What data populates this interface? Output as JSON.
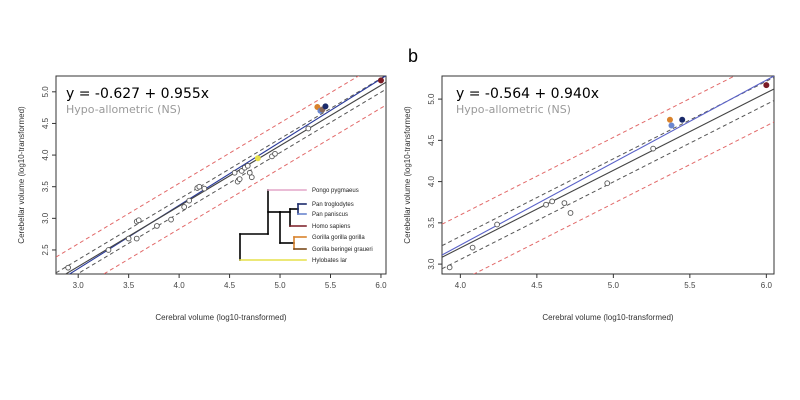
{
  "chart_data": [
    {
      "type": "scatter",
      "panel_label": "",
      "equation": "y = -0.627 + 0.955x",
      "annotation": "Hypo-allometric (NS)",
      "xlabel": "Cerebral volume (log10-transformed)",
      "ylabel": "Cerebellar volume (log10-transformed)",
      "xlim": [
        2.78,
        6.05
      ],
      "ylim": [
        2.12,
        5.25
      ],
      "xticks": [
        "3.0",
        "3.5",
        "4.0",
        "4.5",
        "5.0",
        "5.5",
        "6.0"
      ],
      "yticks": [
        "2.5",
        "3.0",
        "3.5",
        "4.0",
        "4.5",
        "5.0"
      ],
      "grid": false,
      "lines": {
        "fit": {
          "slope": 0.955,
          "intercept": -0.627,
          "color": "#444444"
        },
        "isometric": {
          "slope": 1.0,
          "intercept": -0.795,
          "color": "#2a3a9a"
        },
        "ci_inner": {
          "offset": 0.11,
          "color": "#555555",
          "dash": "dashed"
        },
        "pi_outer": {
          "offset": 0.36,
          "color": "#e26a6a",
          "dash": "dashed"
        }
      },
      "points": [
        {
          "x": 2.9,
          "y": 2.22
        },
        {
          "x": 3.3,
          "y": 2.5
        },
        {
          "x": 3.5,
          "y": 2.68
        },
        {
          "x": 3.58,
          "y": 2.68
        },
        {
          "x": 3.58,
          "y": 2.95
        },
        {
          "x": 3.6,
          "y": 2.97
        },
        {
          "x": 3.78,
          "y": 2.88
        },
        {
          "x": 3.92,
          "y": 2.98
        },
        {
          "x": 4.05,
          "y": 3.18
        },
        {
          "x": 4.1,
          "y": 3.28
        },
        {
          "x": 4.18,
          "y": 3.48
        },
        {
          "x": 4.2,
          "y": 3.5
        },
        {
          "x": 4.25,
          "y": 3.47
        },
        {
          "x": 4.55,
          "y": 3.72
        },
        {
          "x": 4.58,
          "y": 3.58
        },
        {
          "x": 4.6,
          "y": 3.62
        },
        {
          "x": 4.62,
          "y": 3.75
        },
        {
          "x": 4.65,
          "y": 3.8
        },
        {
          "x": 4.68,
          "y": 3.83
        },
        {
          "x": 4.7,
          "y": 3.72
        },
        {
          "x": 4.72,
          "y": 3.65
        },
        {
          "x": 4.92,
          "y": 3.98
        },
        {
          "x": 4.95,
          "y": 4.02
        },
        {
          "x": 5.28,
          "y": 4.42
        }
      ],
      "highlighted_points": [
        {
          "x": 4.78,
          "y": 3.95,
          "color": "#e6e04a"
        },
        {
          "x": 5.37,
          "y": 4.76,
          "color": "#d9822b"
        },
        {
          "x": 5.4,
          "y": 4.7,
          "color": "#6a86cf"
        },
        {
          "x": 5.42,
          "y": 4.72,
          "color": "#8a6a5a"
        },
        {
          "x": 5.45,
          "y": 4.77,
          "color": "#1a2a6a"
        },
        {
          "x": 6.0,
          "y": 5.18,
          "color": "#7a1a24"
        }
      ],
      "legend_tree": {
        "taxa": [
          {
            "name": "Pongo pygmaeus",
            "color": "#e4a6c8"
          },
          {
            "name": "Pan troglodytes",
            "color": "#1a2a6a"
          },
          {
            "name": "Pan paniscus",
            "color": "#6a86cf"
          },
          {
            "name": "Homo sapiens",
            "color": "#7a1a24"
          },
          {
            "name": "Gorilla gorilla gorilla",
            "color": "#d9822b"
          },
          {
            "name": "Gorilla beringei graueri",
            "color": "#7a4a1a"
          },
          {
            "name": "Hylobates lar",
            "color": "#e6e04a"
          }
        ]
      }
    },
    {
      "type": "scatter",
      "panel_label": "b",
      "equation": "y = -0.564 + 0.940x",
      "annotation": "Hypo-allometric (NS)",
      "xlabel": "Cerebral volume (log10-transformed)",
      "ylabel": "Cerebellar volume (log10-transformed)",
      "xlim": [
        3.88,
        6.05
      ],
      "ylim": [
        2.88,
        5.28
      ],
      "xticks": [
        "4.0",
        "4.5",
        "5.0",
        "5.5",
        "6.0"
      ],
      "yticks": [
        "3.0",
        "3.5",
        "4.0",
        "4.5",
        "5.0"
      ],
      "grid": false,
      "lines": {
        "fit": {
          "slope": 0.94,
          "intercept": -0.564,
          "color": "#444444"
        },
        "isometric": {
          "slope": 1.0,
          "intercept": -0.77,
          "color": "#5a62c8"
        },
        "ci_inner": {
          "offset": 0.14,
          "color": "#555555",
          "dash": "dashed"
        },
        "pi_outer": {
          "offset": 0.4,
          "color": "#e26a6a",
          "dash": "dashed"
        }
      },
      "points": [
        {
          "x": 3.93,
          "y": 2.96
        },
        {
          "x": 4.08,
          "y": 3.2
        },
        {
          "x": 4.24,
          "y": 3.48
        },
        {
          "x": 4.56,
          "y": 3.72
        },
        {
          "x": 4.6,
          "y": 3.76
        },
        {
          "x": 4.68,
          "y": 3.74
        },
        {
          "x": 4.72,
          "y": 3.62
        },
        {
          "x": 4.96,
          "y": 3.98
        },
        {
          "x": 5.26,
          "y": 4.4
        }
      ],
      "highlighted_points": [
        {
          "x": 5.37,
          "y": 4.75,
          "color": "#d9822b"
        },
        {
          "x": 5.38,
          "y": 4.68,
          "color": "#6a86cf"
        },
        {
          "x": 5.45,
          "y": 4.75,
          "color": "#1a2a6a"
        },
        {
          "x": 6.0,
          "y": 5.17,
          "color": "#7a1a24"
        }
      ]
    }
  ]
}
